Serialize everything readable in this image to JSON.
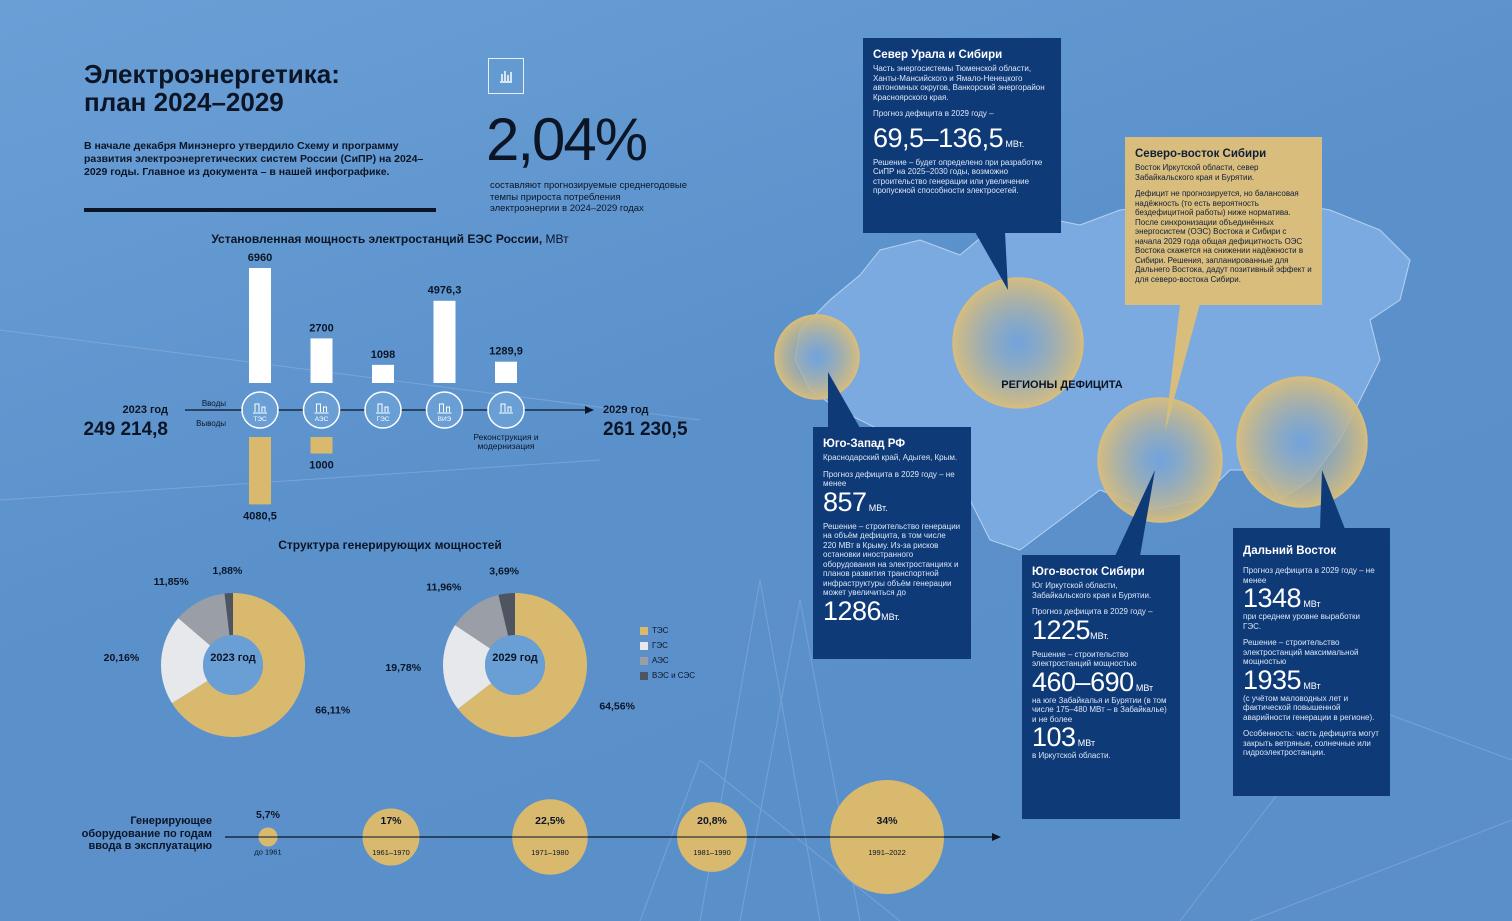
{
  "header": {
    "title": [
      "Электроэнергетика:",
      "план 2024–2029"
    ],
    "intro": "В начале декабря Минэнерго утвердило Схему и программу развития электроэнергетических систем России (СиПР) на 2024–2029 годы. Главное из документа – в нашей инфографике.",
    "stat_value": "2,04%",
    "stat_text": "составляют прогнозируемые среднегодовые темпы прироста потребления электроэнергии в 2024–2029 годах"
  },
  "structure_title": "Структура генерирующих мощностей",
  "chart_data": [
    {
      "type": "bar",
      "title": "Установленная мощность электростанций ЕЭС России,",
      "unit": "МВт",
      "categories": [
        "ТЭС",
        "АЭС",
        "ГЭС",
        "ВИЭ",
        "Реконструкция и модернизация"
      ],
      "series": [
        {
          "name": "Вводы",
          "color": "#ffffff",
          "values": [
            6960,
            2700,
            1098,
            4976.3,
            1289.9
          ],
          "value_labels": [
            "6960",
            "2700",
            "1098",
            "4976,3",
            "1289,9"
          ]
        },
        {
          "name": "Выводы",
          "color": "#d8b96e",
          "values": [
            4080.5,
            1000,
            null,
            null,
            null
          ],
          "value_labels": [
            "4080,5",
            "1000",
            null,
            null,
            null
          ]
        }
      ],
      "start_label": "2023 год",
      "start_value": 249214.8,
      "start_value_label": "249 214,8",
      "end_label": "2029 год",
      "end_value": 261230.5,
      "end_value_label": "261 230,5"
    },
    {
      "type": "pie",
      "center_label": "2023 год",
      "categories": [
        "ТЭС",
        "ГЭС",
        "АЭС",
        "ВЭС и СЭС"
      ],
      "colors": [
        "#d8b96e",
        "#e6e8ec",
        "#9a9ea6",
        "#4f5560"
      ],
      "values": [
        66.11,
        20.16,
        11.85,
        1.88
      ],
      "value_labels": [
        "66,11%",
        "20,16%",
        "11,85%",
        "1,88%"
      ]
    },
    {
      "type": "pie",
      "center_label": "2029 год",
      "categories": [
        "ТЭС",
        "ГЭС",
        "АЭС",
        "ВЭС и СЭС"
      ],
      "colors": [
        "#d8b96e",
        "#e6e8ec",
        "#9a9ea6",
        "#4f5560"
      ],
      "values": [
        64.56,
        19.78,
        11.96,
        3.69
      ],
      "value_labels": [
        "64,56%",
        "19,78%",
        "11,96%",
        "3,69%"
      ]
    },
    {
      "type": "bubble",
      "title": "Генерирующее оборудование по годам ввода в эксплуатацию",
      "color": "#d8b96e",
      "categories": [
        "до 1961",
        "1961–1970",
        "1971–1980",
        "1981–1990",
        "1991–2022"
      ],
      "values": [
        5.7,
        17,
        22.5,
        20.8,
        34
      ],
      "value_labels": [
        "5,7%",
        "17%",
        "22,5%",
        "20,8%",
        "34%"
      ]
    }
  ],
  "map": {
    "label": "РЕГИОНЫ ДЕФИЦИТА",
    "north_ural": {
      "title": "Север Урала и Сибири",
      "description": "Часть энергосистемы Тюменской области, Ханты-Мансийского и Ямало-Ненецкого автономных округов, Ванкорский энергорайон Красноярского края.",
      "forecast": "Прогноз дефицита в 2029 году –",
      "forecast_value": "69,5–136,5",
      "forecast_unit": "МВт.",
      "solution": "Решение – будет определено при разработке СиПР на 2025–2030 годы, возможно строительство генерации или увеличение пропускной способности электросетей."
    },
    "northeast_siberia": {
      "title": "Северо-восток Сибири",
      "description": "Восток Иркутской области, север Забайкальского края и Бурятии.",
      "text": "Дефицит не прогнозируется, но балансовая надёжность (то есть вероятность бездефицитной работы) ниже норматива. После синхронизации объединённых энергосистем (ОЭС) Востока и Сибири с начала 2029 года общая дефицитность ОЭС Востока скажется на снижении надёжности в Сибири. Решения, запланированные для Дальнего Востока, дадут позитивный эффект и для северо-востока Сибири."
    },
    "southwest": {
      "title": "Юго-Запад РФ",
      "description": "Краснодарский край, Адыгея, Крым.",
      "forecast": "Прогноз дефицита в 2029 году – не менее",
      "forecast_value": "857",
      "forecast_unit": "МВт.",
      "solution": "Решение – строительство генерации на объём дефицита, в том числе 220 МВт в Крыму. Из-за рисков остановки иностранного оборудования на электростанциях и планов развития транспортной инфраструктуры объём генерации может увеличиться до",
      "solution_value": "1286",
      "solution_unit": "МВт."
    },
    "southeast_siberia": {
      "title": "Юго-восток Сибири",
      "description": "Юг Иркутской области, Забайкальского края и Бурятии.",
      "forecast": "Прогноз дефицита в 2029 году –",
      "forecast_value": "1225",
      "forecast_unit": "МВт.",
      "solution": "Решение – строительство электростанций мощностью",
      "solution_value": "460–690",
      "solution_unit": "МВт",
      "solution_note": "на юге Забайкалья и Бурятии (в том числе 175–480 МВт – в Забайкалье) и не более",
      "solution_value2": "103",
      "solution_unit2": "МВт",
      "solution_note2": "в Иркутской области."
    },
    "far_east": {
      "title": "Дальний Восток",
      "forecast": "Прогноз дефицита в 2029 году – не менее",
      "forecast_value": "1348",
      "forecast_unit": "МВт",
      "forecast_note": "при среднем уровне выработки ГЭС.",
      "solution": "Решение – строительство электростанций максимальной мощностью",
      "solution_value": "1935",
      "solution_unit": "МВт",
      "solution_note": "(с учётом маловодных лет и фактической повышенной аварийности генерации в регионе).",
      "feature": "Особенность: часть дефицита могут закрыть ветряные, солнечные или гидроэлектростанции."
    }
  }
}
